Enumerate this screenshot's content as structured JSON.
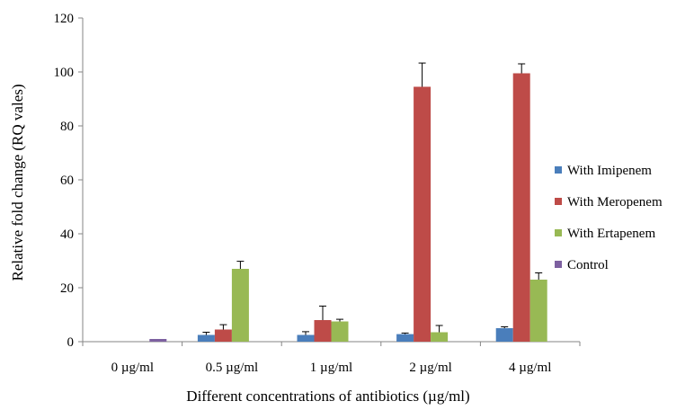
{
  "chart_data": {
    "type": "bar",
    "title": "",
    "xlabel": "Different concentrations of antibiotics (µg/ml)",
    "ylabel": "Relative fold change (RQ vales)",
    "ylim": [
      0,
      120
    ],
    "yticks": [
      0,
      20,
      40,
      60,
      80,
      100,
      120
    ],
    "grid": false,
    "legend_position": "right",
    "categories": [
      "0 µg/ml",
      "0.5 µg/ml",
      "1 µg/ml",
      "2 µg/ml",
      "4 µg/ml"
    ],
    "series": [
      {
        "name": "With Imipenem",
        "color": "#4a7ebb",
        "values": [
          null,
          2.5,
          2.5,
          2.8,
          5.0
        ],
        "errors": [
          null,
          1.0,
          1.2,
          0.4,
          0.5
        ]
      },
      {
        "name": "With Meropenem",
        "color": "#be4b48",
        "values": [
          null,
          4.5,
          8.0,
          94.5,
          99.5
        ],
        "errors": [
          null,
          1.8,
          5.2,
          8.8,
          3.5
        ]
      },
      {
        "name": "With Ertapenem",
        "color": "#98b954",
        "values": [
          null,
          27.0,
          7.5,
          3.5,
          23.0
        ],
        "errors": [
          null,
          2.8,
          0.8,
          2.5,
          2.5
        ]
      },
      {
        "name": "Control",
        "color": "#7d60a0",
        "values": [
          1.0,
          null,
          null,
          null,
          null
        ],
        "errors": [
          null,
          null,
          null,
          null,
          null
        ]
      }
    ]
  }
}
